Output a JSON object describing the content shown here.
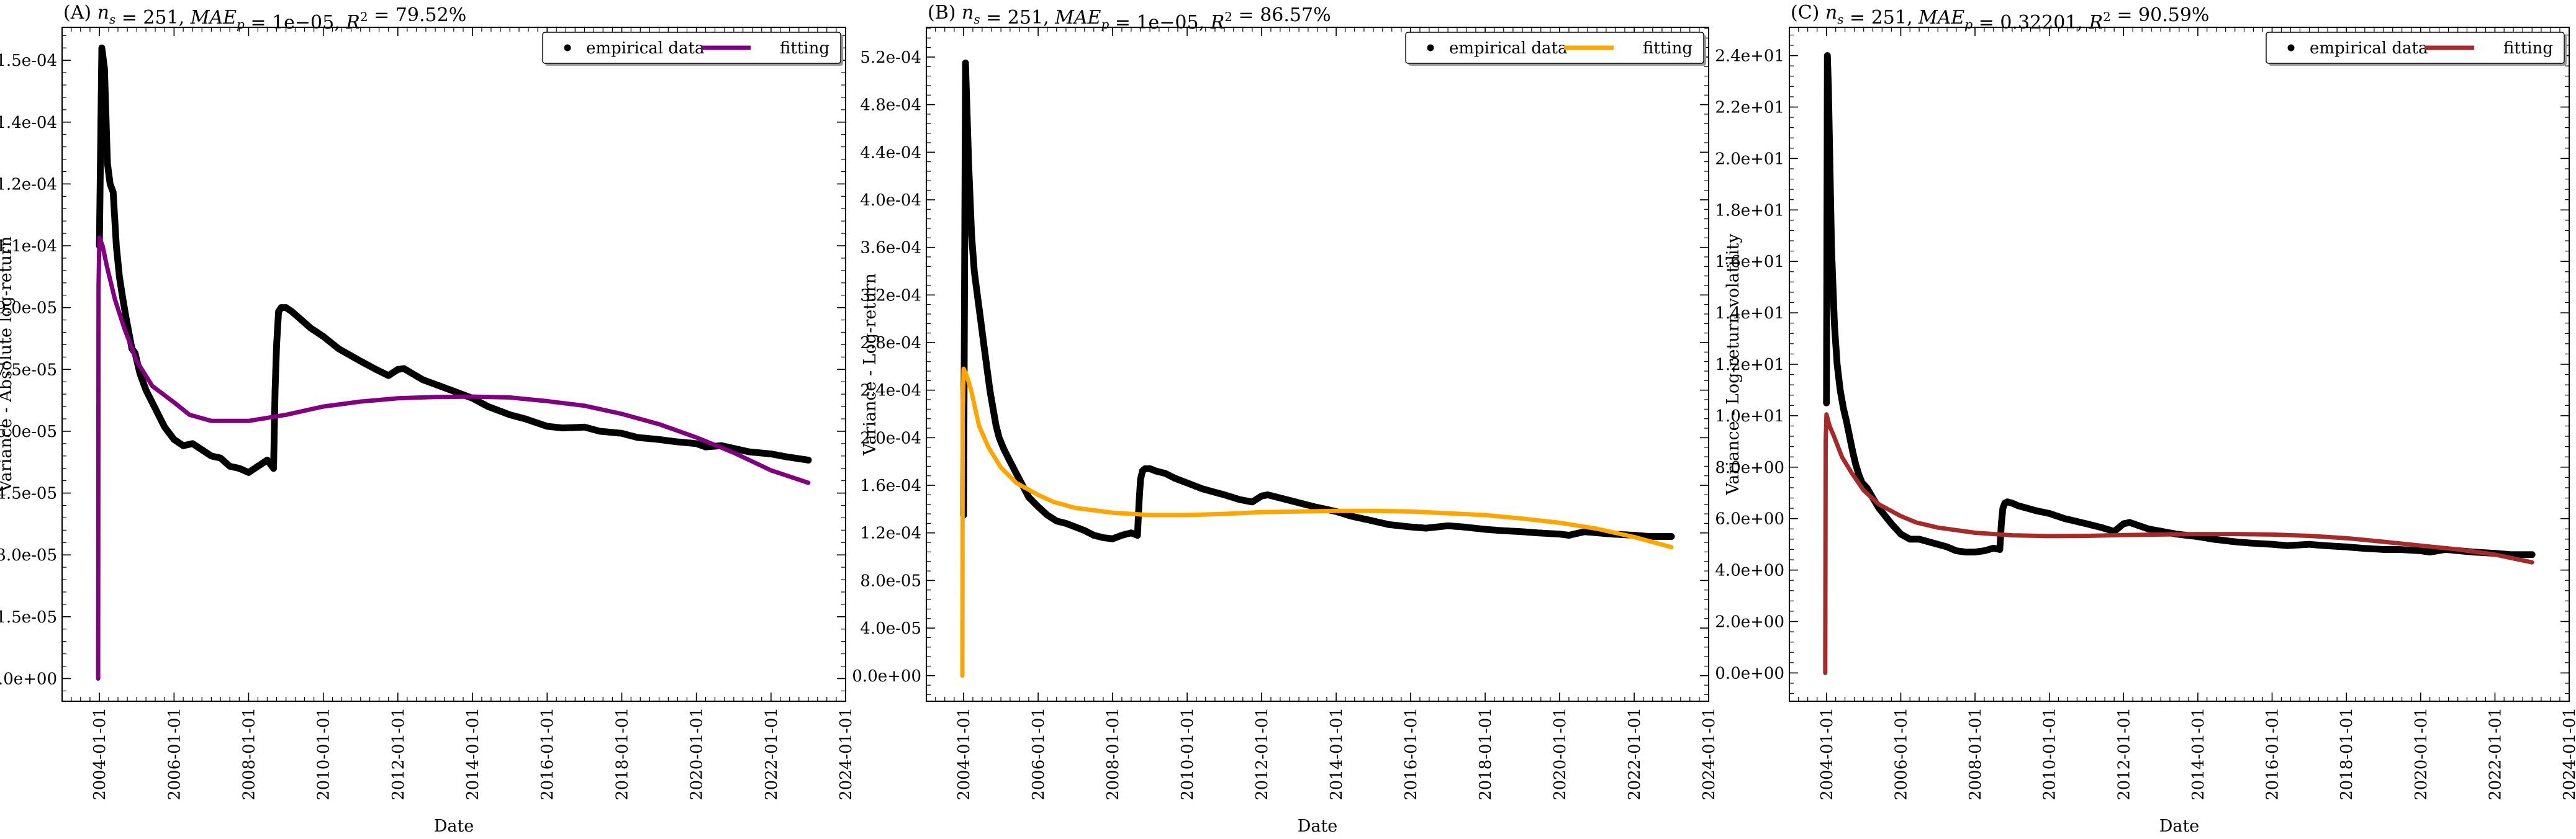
{
  "chart_data": [
    {
      "type": "scatter",
      "title": "(A) n_s = 251, MAE_p = 1e−05, R² = 79.52%",
      "xlabel": "Date",
      "ylabel": "Variance - Absolute log-return",
      "xticks": [
        "2004-01-01",
        "2006-01-01",
        "2008-01-01",
        "2010-01-01",
        "2012-01-01",
        "2014-01-01",
        "2016-01-01",
        "2018-01-01",
        "2020-01-01",
        "2022-01-01",
        "2024-01-01"
      ],
      "yticks": [
        "0.0e+00",
        "1.5e-05",
        "3.0e-05",
        "4.5e-05",
        "6.0e-05",
        "7.5e-05",
        "9.0e-05",
        "1.1e-04",
        "1.2e-04",
        "1.4e-04",
        "1.5e-04"
      ],
      "ytick_values": [
        0,
        1.5e-05,
        3e-05,
        4.5e-05,
        6e-05,
        7.5e-05,
        9e-05,
        0.000105,
        0.00012,
        0.000135,
        0.00015
      ],
      "xlim": [
        "2003-01-01",
        "2024-01-01"
      ],
      "ylim": [
        -5.5e-06,
        0.000158
      ],
      "legend_position": "top-right",
      "fit_color": "#800080",
      "series": [
        {
          "name": "empirical data",
          "style": "points",
          "x": [
            "2004-01-01",
            "2004-01-25",
            "2004-02-20",
            "2004-03-20",
            "2004-04-15",
            "2004-05-15",
            "2004-06-15",
            "2004-07-15",
            "2004-08-15",
            "2004-09-15",
            "2004-10-15",
            "2004-11-15",
            "2004-12-15",
            "2005-02-01",
            "2005-04-01",
            "2005-06-01",
            "2005-08-01",
            "2005-10-01",
            "2006-01-01",
            "2006-04-01",
            "2006-07-01",
            "2006-10-01",
            "2007-01-01",
            "2007-04-01",
            "2007-07-01",
            "2007-10-01",
            "2008-01-01",
            "2008-04-01",
            "2008-07-01",
            "2008-09-01",
            "2008-09-16",
            "2008-10-01",
            "2008-10-20",
            "2008-11-15",
            "2009-01-01",
            "2009-03-01",
            "2009-06-01",
            "2009-09-01",
            "2010-01-01",
            "2010-06-01",
            "2011-01-01",
            "2011-06-01",
            "2011-10-01",
            "2012-01-01",
            "2012-03-01",
            "2012-09-01",
            "2013-06-01",
            "2014-01-01",
            "2014-06-01",
            "2015-01-01",
            "2015-06-01",
            "2016-01-01",
            "2016-06-01",
            "2017-01-01",
            "2017-06-01",
            "2018-01-01",
            "2018-06-01",
            "2019-01-01",
            "2019-06-01",
            "2020-01-01",
            "2020-04-01",
            "2020-09-01",
            "2021-06-01",
            "2022-01-01",
            "2022-06-01",
            "2023-01-01"
          ],
          "y": [
            0.000105,
            0.000153,
            0.000148,
            0.000125,
            0.00012,
            0.000118,
            0.000105,
            9.75e-05,
            9.25e-05,
            8.8e-05,
            8.4e-05,
            8e-05,
            7.9e-05,
            7.4e-05,
            7e-05,
            6.7e-05,
            6.4e-05,
            6.1e-05,
            5.8e-05,
            5.65e-05,
            5.7e-05,
            5.55e-05,
            5.4e-05,
            5.35e-05,
            5.15e-05,
            5.1e-05,
            5e-05,
            5.15e-05,
            5.3e-05,
            5.1e-05,
            7e-05,
            8.1e-05,
            8.9e-05,
            9e-05,
            9e-05,
            8.9e-05,
            8.7e-05,
            8.5e-05,
            8.3e-05,
            8e-05,
            7.7e-05,
            7.5e-05,
            7.35e-05,
            7.5e-05,
            7.52e-05,
            7.25e-05,
            7e-05,
            6.8e-05,
            6.6e-05,
            6.4e-05,
            6.3e-05,
            6.12e-05,
            6.08e-05,
            6.1e-05,
            6e-05,
            5.95e-05,
            5.85e-05,
            5.8e-05,
            5.75e-05,
            5.7e-05,
            5.62e-05,
            5.65e-05,
            5.5e-05,
            5.45e-05,
            5.38e-05,
            5.3e-05
          ]
        },
        {
          "name": "fitting",
          "style": "line",
          "x": [
            "2003-12-20",
            "2003-12-24",
            "2004-01-01",
            "2004-02-01",
            "2004-03-15",
            "2004-06-01",
            "2004-09-01",
            "2005-01-01",
            "2005-06-01",
            "2006-01-01",
            "2006-06-01",
            "2007-01-01",
            "2008-01-01",
            "2009-01-01",
            "2010-01-01",
            "2011-01-01",
            "2012-01-01",
            "2013-01-01",
            "2014-01-01",
            "2015-01-01",
            "2016-01-01",
            "2017-01-01",
            "2018-01-01",
            "2019-01-01",
            "2020-01-01",
            "2021-01-01",
            "2022-01-01",
            "2023-01-01"
          ],
          "y": [
            0,
            9.5e-05,
            0.000107,
            0.000105,
            0.0001,
            9.2e-05,
            8.5e-05,
            7.7e-05,
            7.1e-05,
            6.7e-05,
            6.4e-05,
            6.25e-05,
            6.25e-05,
            6.4e-05,
            6.6e-05,
            6.72e-05,
            6.8e-05,
            6.83e-05,
            6.84e-05,
            6.82e-05,
            6.73e-05,
            6.62e-05,
            6.42e-05,
            6.17e-05,
            5.85e-05,
            5.48e-05,
            5.05e-05,
            4.75e-05
          ]
        }
      ]
    },
    {
      "type": "scatter",
      "title": "(B) n_s = 251, MAE_p = 1e−05, R² = 86.57%",
      "xlabel": "Date",
      "ylabel": "Variance - Log-return",
      "xticks": [
        "2004-01-01",
        "2006-01-01",
        "2008-01-01",
        "2010-01-01",
        "2012-01-01",
        "2014-01-01",
        "2016-01-01",
        "2018-01-01",
        "2020-01-01",
        "2022-01-01",
        "2024-01-01"
      ],
      "yticks": [
        "0.0e+00",
        "4.0e-05",
        "8.0e-05",
        "1.2e-04",
        "1.6e-04",
        "2.0e-04",
        "2.4e-04",
        "2.8e-04",
        "3.2e-04",
        "3.6e-04",
        "4.0e-04",
        "4.4e-04",
        "4.8e-04",
        "5.2e-04"
      ],
      "ytick_values": [
        0,
        4e-05,
        8e-05,
        0.00012,
        0.00016,
        0.0002,
        0.00024,
        0.00028,
        0.00032,
        0.00036,
        0.0004,
        0.00044,
        0.00048,
        0.00052
      ],
      "xlim": [
        "2003-01-01",
        "2024-01-01"
      ],
      "ylim": [
        -2.15e-05,
        0.000545
      ],
      "legend_position": "top-right",
      "fit_color": "#FFA500",
      "series": [
        {
          "name": "empirical data",
          "style": "points",
          "x": [
            "2004-01-01",
            "2004-01-20",
            "2004-02-20",
            "2004-03-20",
            "2004-04-15",
            "2004-05-15",
            "2004-06-15",
            "2004-07-15",
            "2004-08-15",
            "2004-09-15",
            "2004-10-15",
            "2004-11-15",
            "2004-12-15",
            "2005-02-01",
            "2005-04-01",
            "2005-06-01",
            "2005-08-01",
            "2005-10-01",
            "2006-01-01",
            "2006-04-01",
            "2006-07-01",
            "2006-10-01",
            "2007-01-01",
            "2007-04-01",
            "2007-07-01",
            "2007-10-01",
            "2008-01-01",
            "2008-04-01",
            "2008-07-01",
            "2008-09-01",
            "2008-09-16",
            "2008-10-01",
            "2008-10-20",
            "2008-11-15",
            "2009-01-01",
            "2009-03-01",
            "2009-06-01",
            "2009-09-01",
            "2010-01-01",
            "2010-06-01",
            "2011-01-01",
            "2011-06-01",
            "2011-10-01",
            "2012-01-01",
            "2012-03-01",
            "2012-09-01",
            "2013-06-01",
            "2014-01-01",
            "2014-06-01",
            "2015-01-01",
            "2015-06-01",
            "2016-01-01",
            "2016-06-01",
            "2017-01-01",
            "2017-06-01",
            "2018-01-01",
            "2018-06-01",
            "2019-01-01",
            "2019-06-01",
            "2020-01-01",
            "2020-04-01",
            "2020-09-01",
            "2021-06-01",
            "2022-01-01",
            "2022-06-01",
            "2023-01-01"
          ],
          "y": [
            0.000135,
            0.000515,
            0.00043,
            0.00037,
            0.00034,
            0.00032,
            0.0003,
            0.00028,
            0.00026,
            0.00024,
            0.000225,
            0.00021,
            0.0002,
            0.00019,
            0.00018,
            0.00017,
            0.00016,
            0.00015,
            0.000142,
            0.000135,
            0.00013,
            0.000128,
            0.000125,
            0.000122,
            0.000118,
            0.000116,
            0.000115,
            0.000118,
            0.00012,
            0.000118,
            0.000145,
            0.000165,
            0.000172,
            0.000174,
            0.000174,
            0.000172,
            0.00017,
            0.000166,
            0.000162,
            0.000157,
            0.000152,
            0.000148,
            0.000146,
            0.000151,
            0.000152,
            0.000148,
            0.000142,
            0.000138,
            0.000134,
            0.00013,
            0.000127,
            0.000125,
            0.000124,
            0.000126,
            0.000125,
            0.000123,
            0.000122,
            0.000121,
            0.00012,
            0.000119,
            0.000118,
            0.000121,
            0.000119,
            0.000118,
            0.000117,
            0.000117
          ]
        },
        {
          "name": "fitting",
          "style": "line",
          "x": [
            "2003-12-20",
            "2003-12-24",
            "2004-01-01",
            "2004-02-01",
            "2004-03-15",
            "2004-06-01",
            "2004-09-01",
            "2005-01-01",
            "2005-06-01",
            "2006-01-01",
            "2006-06-01",
            "2007-01-01",
            "2008-01-01",
            "2009-01-01",
            "2010-01-01",
            "2011-01-01",
            "2012-01-01",
            "2013-01-01",
            "2014-01-01",
            "2015-01-01",
            "2016-01-01",
            "2017-01-01",
            "2018-01-01",
            "2019-01-01",
            "2020-01-01",
            "2021-01-01",
            "2022-01-01",
            "2023-01-01"
          ],
          "y": [
            0,
            0.00022,
            0.000258,
            0.000252,
            0.00024,
            0.00021,
            0.000192,
            0.000175,
            0.000162,
            0.000152,
            0.000146,
            0.000141,
            0.000137,
            0.000135,
            0.000135,
            0.000136,
            0.0001375,
            0.000138,
            0.0001385,
            0.0001385,
            0.000138,
            0.0001365,
            0.000135,
            0.000132,
            0.0001285,
            0.0001235,
            0.0001165,
            0.000108
          ]
        }
      ]
    },
    {
      "type": "scatter",
      "title": "(C) n_s = 251, MAE_p = 0.32201, R² = 90.59%",
      "xlabel": "Date",
      "ylabel": "Variance - Log-return volatility",
      "xticks": [
        "2004-01-01",
        "2006-01-01",
        "2008-01-01",
        "2010-01-01",
        "2012-01-01",
        "2014-01-01",
        "2016-01-01",
        "2018-01-01",
        "2020-01-01",
        "2022-01-01",
        "2024-01-01"
      ],
      "yticks": [
        "0.0e+00",
        "2.0e+00",
        "4.0e+00",
        "6.0e+00",
        "8.0e+00",
        "1.0e+01",
        "1.2e+01",
        "1.4e+01",
        "1.6e+01",
        "1.8e+01",
        "2.0e+01",
        "2.2e+01",
        "2.4e+01"
      ],
      "ytick_values": [
        0,
        2,
        4,
        6,
        8,
        10,
        12,
        14,
        16,
        18,
        20,
        22,
        24
      ],
      "xlim": [
        "2003-01-01",
        "2024-01-01"
      ],
      "ylim": [
        -1.1,
        25.1
      ],
      "legend_position": "top-right",
      "fit_color": "#A52A2A",
      "series": [
        {
          "name": "empirical data",
          "style": "points",
          "x": [
            "2004-01-01",
            "2004-01-10",
            "2004-01-20",
            "2004-02-20",
            "2004-03-20",
            "2004-04-15",
            "2004-05-15",
            "2004-06-15",
            "2004-07-15",
            "2004-08-15",
            "2004-09-15",
            "2004-10-15",
            "2004-11-15",
            "2004-12-15",
            "2005-02-01",
            "2005-04-01",
            "2005-06-01",
            "2005-08-01",
            "2005-10-01",
            "2006-01-01",
            "2006-04-01",
            "2006-07-01",
            "2006-10-01",
            "2007-01-01",
            "2007-04-01",
            "2007-07-01",
            "2007-10-01",
            "2008-01-01",
            "2008-04-01",
            "2008-07-01",
            "2008-09-01",
            "2008-09-16",
            "2008-10-01",
            "2008-10-20",
            "2008-11-15",
            "2009-01-01",
            "2009-03-01",
            "2009-06-01",
            "2009-09-01",
            "2010-01-01",
            "2010-06-01",
            "2011-01-01",
            "2011-06-01",
            "2011-10-01",
            "2012-01-01",
            "2012-03-01",
            "2012-09-01",
            "2013-06-01",
            "2014-01-01",
            "2014-06-01",
            "2015-01-01",
            "2015-06-01",
            "2016-01-01",
            "2016-06-01",
            "2017-01-01",
            "2017-06-01",
            "2018-01-01",
            "2018-06-01",
            "2019-01-01",
            "2019-06-01",
            "2020-01-01",
            "2020-04-01",
            "2020-09-01",
            "2021-06-01",
            "2022-01-01",
            "2022-06-01",
            "2023-01-01"
          ],
          "y": [
            10.5,
            24,
            22.8,
            16.5,
            13.5,
            12,
            11,
            10.3,
            9.8,
            9.2,
            8.6,
            8.1,
            7.7,
            7.4,
            7.2,
            6.8,
            6.4,
            6.1,
            5.8,
            5.4,
            5.2,
            5.2,
            5.1,
            5,
            4.9,
            4.75,
            4.7,
            4.7,
            4.75,
            4.85,
            4.8,
            5.8,
            6.4,
            6.6,
            6.65,
            6.6,
            6.5,
            6.4,
            6.3,
            6.2,
            6,
            5.8,
            5.65,
            5.5,
            5.8,
            5.85,
            5.6,
            5.4,
            5.3,
            5.2,
            5.1,
            5.05,
            5,
            4.95,
            5,
            4.95,
            4.9,
            4.85,
            4.8,
            4.8,
            4.75,
            4.7,
            4.8,
            4.7,
            4.65,
            4.6,
            4.6
          ]
        },
        {
          "name": "fitting",
          "style": "line",
          "x": [
            "2003-12-20",
            "2003-12-24",
            "2004-01-01",
            "2004-02-01",
            "2004-03-15",
            "2004-06-01",
            "2004-09-01",
            "2005-01-01",
            "2005-06-01",
            "2006-01-01",
            "2006-06-01",
            "2007-01-01",
            "2008-01-01",
            "2009-01-01",
            "2010-01-01",
            "2011-01-01",
            "2012-01-01",
            "2013-01-01",
            "2014-01-01",
            "2015-01-01",
            "2016-01-01",
            "2017-01-01",
            "2018-01-01",
            "2019-01-01",
            "2020-01-01",
            "2021-01-01",
            "2022-01-01",
            "2023-01-01"
          ],
          "y": [
            0,
            9,
            10.05,
            9.6,
            9.2,
            8.4,
            7.8,
            7.1,
            6.55,
            6.1,
            5.85,
            5.65,
            5.45,
            5.35,
            5.32,
            5.33,
            5.36,
            5.38,
            5.4,
            5.4,
            5.38,
            5.33,
            5.24,
            5.1,
            4.95,
            4.8,
            4.6,
            4.3
          ]
        }
      ]
    }
  ]
}
